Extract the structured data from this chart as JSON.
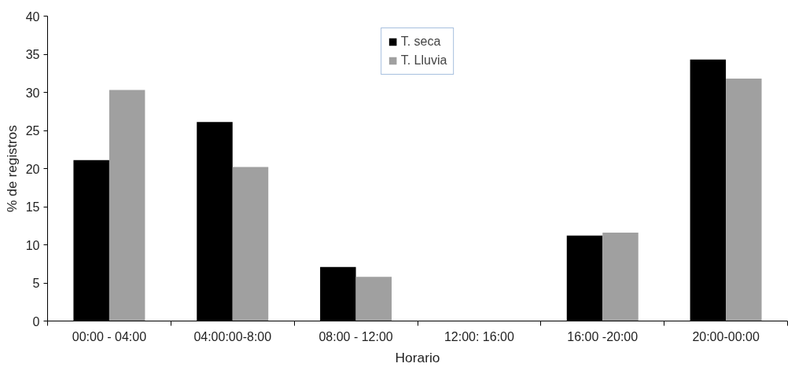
{
  "chart_data": {
    "type": "bar",
    "xlabel": "Horario",
    "ylabel": "% de registros",
    "categories": [
      "00:00 - 04:00",
      "04:00:00-8:00",
      "08:00 - 12:00",
      "12:00: 16:00",
      "16:00 -20:00",
      "20:00-00:00"
    ],
    "series": [
      {
        "name": "T. seca",
        "color": "#000000",
        "values": [
          21.1,
          26.1,
          7.1,
          0,
          11.2,
          34.3
        ]
      },
      {
        "name": "T. Lluvia",
        "color": "#a0a0a0",
        "values": [
          30.3,
          20.2,
          5.8,
          0,
          11.6,
          31.8
        ]
      }
    ],
    "ylim": [
      0,
      40
    ],
    "yticks": [
      0,
      5,
      10,
      15,
      20,
      25,
      30,
      35,
      40
    ],
    "grid": false,
    "legend": "top"
  }
}
